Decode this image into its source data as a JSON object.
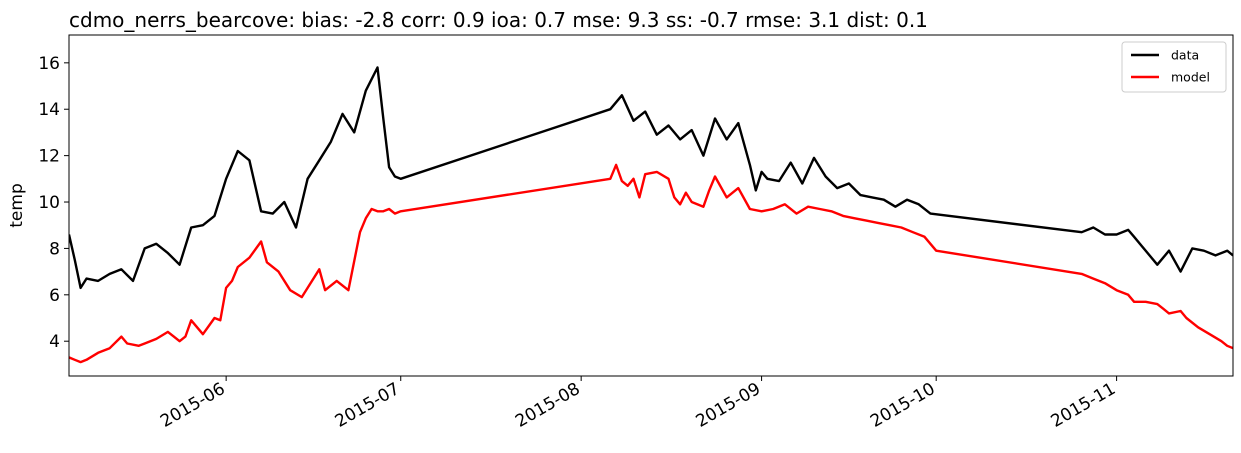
{
  "chart_data": {
    "type": "line",
    "title": "cdmo_nerrs_bearcove: bias: -2.8  corr: 0.9  ioa: 0.7  mse: 9.3  ss: -0.7  rmse: 3.1  dist: 0.1",
    "xlabel": "",
    "ylabel": "temp",
    "xlim": [
      "2015-05-05",
      "2015-11-21"
    ],
    "ylim": [
      2.5,
      17.2
    ],
    "yticks": [
      4,
      6,
      8,
      10,
      12,
      14,
      16
    ],
    "xticks": [
      "2015-06",
      "2015-07",
      "2015-08",
      "2015-09",
      "2015-10",
      "2015-11"
    ],
    "grid": false,
    "legend_position": "top-right",
    "series": [
      {
        "name": "data",
        "color": "#000000",
        "x": [
          "2015-05-05",
          "2015-05-06",
          "2015-05-07",
          "2015-05-08",
          "2015-05-10",
          "2015-05-12",
          "2015-05-14",
          "2015-05-16",
          "2015-05-18",
          "2015-05-20",
          "2015-05-22",
          "2015-05-24",
          "2015-05-26",
          "2015-05-28",
          "2015-05-30",
          "2015-06-01",
          "2015-06-03",
          "2015-06-05",
          "2015-06-07",
          "2015-06-09",
          "2015-06-11",
          "2015-06-13",
          "2015-06-15",
          "2015-06-17",
          "2015-06-19",
          "2015-06-21",
          "2015-06-23",
          "2015-06-25",
          "2015-06-27",
          "2015-06-28",
          "2015-06-29",
          "2015-06-30",
          "2015-07-01",
          "2015-08-06",
          "2015-08-08",
          "2015-08-10",
          "2015-08-12",
          "2015-08-14",
          "2015-08-16",
          "2015-08-18",
          "2015-08-20",
          "2015-08-22",
          "2015-08-24",
          "2015-08-26",
          "2015-08-28",
          "2015-08-30",
          "2015-08-31",
          "2015-09-01",
          "2015-09-02",
          "2015-09-04",
          "2015-09-06",
          "2015-09-08",
          "2015-09-10",
          "2015-09-12",
          "2015-09-14",
          "2015-09-16",
          "2015-09-18",
          "2015-09-20",
          "2015-09-22",
          "2015-09-24",
          "2015-09-26",
          "2015-09-28",
          "2015-09-30",
          "2015-10-26",
          "2015-10-28",
          "2015-10-30",
          "2015-11-01",
          "2015-11-03",
          "2015-11-04",
          "2015-11-08",
          "2015-11-10",
          "2015-11-12",
          "2015-11-14",
          "2015-11-16",
          "2015-11-18",
          "2015-11-20",
          "2015-11-21"
        ],
        "y": [
          8.6,
          7.5,
          6.3,
          6.7,
          6.6,
          6.9,
          7.1,
          6.6,
          8.0,
          8.2,
          7.8,
          7.3,
          8.9,
          9.0,
          9.4,
          11.0,
          12.2,
          11.8,
          9.6,
          9.5,
          10.0,
          8.9,
          11.0,
          11.8,
          12.6,
          13.8,
          13.0,
          14.8,
          15.8,
          13.6,
          11.5,
          11.1,
          11.0,
          14.0,
          14.6,
          13.5,
          13.9,
          12.9,
          13.3,
          12.7,
          13.1,
          12.0,
          13.6,
          12.7,
          13.4,
          11.6,
          10.5,
          11.3,
          11.0,
          10.9,
          11.7,
          10.8,
          11.9,
          11.1,
          10.6,
          10.8,
          10.3,
          10.2,
          10.1,
          9.8,
          10.1,
          9.9,
          9.5,
          8.7,
          8.9,
          8.6,
          8.6,
          8.8,
          8.5,
          7.3,
          7.9,
          7.0,
          8.0,
          7.9,
          7.7,
          7.9,
          7.7
        ]
      },
      {
        "name": "model",
        "color": "#ff0000",
        "x": [
          "2015-05-05",
          "2015-05-06",
          "2015-05-07",
          "2015-05-08",
          "2015-05-10",
          "2015-05-12",
          "2015-05-14",
          "2015-05-15",
          "2015-05-17",
          "2015-05-18",
          "2015-05-20",
          "2015-05-22",
          "2015-05-23",
          "2015-05-24",
          "2015-05-25",
          "2015-05-26",
          "2015-05-28",
          "2015-05-30",
          "2015-05-31",
          "2015-06-01",
          "2015-06-02",
          "2015-06-03",
          "2015-06-05",
          "2015-06-07",
          "2015-06-08",
          "2015-06-10",
          "2015-06-12",
          "2015-06-14",
          "2015-06-15",
          "2015-06-17",
          "2015-06-18",
          "2015-06-20",
          "2015-06-22",
          "2015-06-24",
          "2015-06-25",
          "2015-06-26",
          "2015-06-27",
          "2015-06-28",
          "2015-06-29",
          "2015-06-30",
          "2015-07-01",
          "2015-08-06",
          "2015-08-07",
          "2015-08-08",
          "2015-08-09",
          "2015-08-10",
          "2015-08-11",
          "2015-08-12",
          "2015-08-14",
          "2015-08-16",
          "2015-08-17",
          "2015-08-18",
          "2015-08-19",
          "2015-08-20",
          "2015-08-22",
          "2015-08-23",
          "2015-08-24",
          "2015-08-26",
          "2015-08-28",
          "2015-08-30",
          "2015-09-01",
          "2015-09-03",
          "2015-09-05",
          "2015-09-07",
          "2015-09-09",
          "2015-09-11",
          "2015-09-13",
          "2015-09-15",
          "2015-09-17",
          "2015-09-19",
          "2015-09-21",
          "2015-09-23",
          "2015-09-25",
          "2015-09-27",
          "2015-09-29",
          "2015-10-01",
          "2015-10-26",
          "2015-10-28",
          "2015-10-30",
          "2015-11-01",
          "2015-11-03",
          "2015-11-04",
          "2015-11-06",
          "2015-11-08",
          "2015-11-09",
          "2015-11-10",
          "2015-11-12",
          "2015-11-13",
          "2015-11-15",
          "2015-11-17",
          "2015-11-19",
          "2015-11-20",
          "2015-11-21"
        ],
        "y": [
          3.3,
          3.2,
          3.1,
          3.2,
          3.5,
          3.7,
          4.2,
          3.9,
          3.8,
          3.9,
          4.1,
          4.4,
          4.2,
          4.0,
          4.2,
          4.9,
          4.3,
          5.0,
          4.9,
          6.3,
          6.6,
          7.2,
          7.6,
          8.3,
          7.4,
          7.0,
          6.2,
          5.9,
          6.3,
          7.1,
          6.2,
          6.6,
          6.2,
          8.7,
          9.3,
          9.7,
          9.6,
          9.6,
          9.7,
          9.5,
          9.6,
          11.0,
          11.6,
          10.9,
          10.7,
          11.0,
          10.2,
          11.2,
          11.3,
          11.0,
          10.2,
          9.9,
          10.4,
          10.0,
          9.8,
          10.5,
          11.1,
          10.2,
          10.6,
          9.7,
          9.6,
          9.7,
          9.9,
          9.5,
          9.8,
          9.7,
          9.6,
          9.4,
          9.3,
          9.2,
          9.1,
          9.0,
          8.9,
          8.7,
          8.5,
          7.9,
          6.9,
          6.7,
          6.5,
          6.2,
          6.0,
          5.7,
          5.7,
          5.6,
          5.4,
          5.2,
          5.3,
          5.0,
          4.6,
          4.3,
          4.0,
          3.8,
          3.7
        ]
      }
    ]
  }
}
